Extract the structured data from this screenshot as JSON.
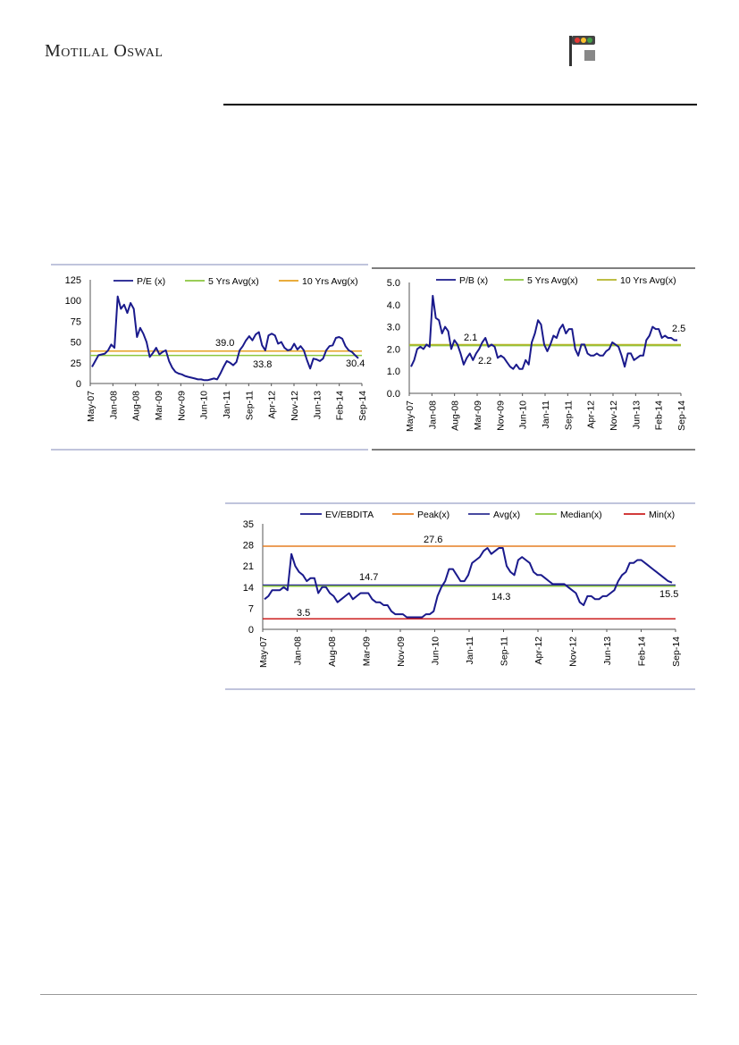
{
  "header": {
    "brand_name": "Motilal Oswal"
  },
  "colors": {
    "series": "#1a1a8c",
    "green": "#8cc63f",
    "orange": "#e6a020",
    "olive": "#b5b52a",
    "dark_orange": "#e67e22",
    "navy_line": "#2e3192",
    "red": "#cc1f1f",
    "frame_line": "#9aa0c8"
  },
  "chart_data": [
    {
      "id": "pe",
      "type": "line",
      "ylim": [
        0,
        125
      ],
      "yticks": [
        "0",
        "25",
        "50",
        "75",
        "100",
        "125"
      ],
      "xticks": [
        "May-07",
        "Jan-08",
        "Aug-08",
        "Mar-09",
        "Nov-09",
        "Jun-10",
        "Jan-11",
        "Sep-11",
        "Apr-12",
        "Nov-12",
        "Jun-13",
        "Feb-14",
        "Sep-14"
      ],
      "legend": [
        "P/E (x)",
        "5 Yrs Avg(x)",
        "10 Yrs Avg(x)"
      ],
      "series": [
        {
          "name": "P/E (x)",
          "values": [
            20,
            27,
            34,
            35,
            36,
            40,
            47,
            43,
            105,
            90,
            95,
            85,
            97,
            90,
            56,
            67,
            60,
            50,
            32,
            37,
            43,
            35,
            38,
            40,
            27,
            19,
            14,
            12,
            11,
            9,
            8,
            7,
            6,
            5,
            5,
            4,
            4,
            5,
            6,
            5,
            12,
            20,
            27,
            25,
            22,
            26,
            40,
            45,
            52,
            57,
            52,
            59,
            62,
            46,
            40,
            58,
            60,
            58,
            48,
            50,
            43,
            40,
            41,
            48,
            41,
            45,
            40,
            28,
            18,
            30,
            29,
            27,
            30,
            40,
            45,
            46,
            55,
            56,
            54,
            45,
            40,
            38,
            34,
            30.4
          ]
        }
      ],
      "hlines": [
        {
          "name": "5 Yrs Avg(x)",
          "value": 33.8,
          "label": "33.8",
          "color": "#8cc63f"
        },
        {
          "name": "10 Yrs Avg(x)",
          "value": 39.0,
          "label": "39.0",
          "color": "#e6a020"
        }
      ],
      "annotations": [
        "39.0",
        "33.8",
        "30.4"
      ]
    },
    {
      "id": "pb",
      "type": "line",
      "ylim": [
        0,
        5
      ],
      "yticks": [
        "0.0",
        "1.0",
        "2.0",
        "3.0",
        "4.0",
        "5.0"
      ],
      "xticks": [
        "May-07",
        "Jan-08",
        "Aug-08",
        "Mar-09",
        "Nov-09",
        "Jun-10",
        "Jan-11",
        "Sep-11",
        "Apr-12",
        "Nov-12",
        "Jun-13",
        "Feb-14",
        "Sep-14"
      ],
      "legend": [
        "P/B (x)",
        "5 Yrs Avg(x)",
        "10 Yrs Avg(x)"
      ],
      "series": [
        {
          "name": "P/B (x)",
          "values": [
            1.2,
            1.5,
            2.0,
            2.1,
            2.0,
            2.2,
            2.1,
            4.4,
            3.4,
            3.3,
            2.7,
            3.0,
            2.8,
            2.0,
            2.4,
            2.2,
            1.8,
            1.3,
            1.6,
            1.8,
            1.5,
            1.8,
            2.0,
            2.3,
            2.5,
            2.1,
            2.2,
            2.1,
            1.6,
            1.7,
            1.6,
            1.4,
            1.2,
            1.1,
            1.3,
            1.1,
            1.1,
            1.5,
            1.3,
            2.3,
            2.7,
            3.3,
            3.1,
            2.2,
            1.9,
            2.2,
            2.6,
            2.5,
            2.9,
            3.1,
            2.7,
            2.9,
            2.9,
            2.0,
            1.7,
            2.2,
            2.2,
            1.8,
            1.7,
            1.7,
            1.8,
            1.7,
            1.7,
            1.9,
            2.0,
            2.3,
            2.2,
            2.1,
            1.7,
            1.2,
            1.8,
            1.8,
            1.5,
            1.6,
            1.7,
            1.7,
            2.4,
            2.6,
            3.0,
            2.9,
            2.9,
            2.5,
            2.6,
            2.5,
            2.5,
            2.4,
            2.4
          ]
        }
      ],
      "hlines": [
        {
          "name": "5 Yrs Avg(x)",
          "value": 2.15,
          "label": "2.1",
          "color": "#8cc63f"
        },
        {
          "name": "10 Yrs Avg(x)",
          "value": 2.2,
          "label": "2.2",
          "color": "#b5b52a"
        }
      ],
      "annotations": [
        "2.1",
        "2.2",
        "2.5"
      ]
    },
    {
      "id": "ev",
      "type": "line",
      "ylim": [
        0,
        35
      ],
      "yticks": [
        "0",
        "7",
        "14",
        "21",
        "28",
        "35"
      ],
      "xticks": [
        "May-07",
        "Jan-08",
        "Aug-08",
        "Mar-09",
        "Nov-09",
        "Jun-10",
        "Jan-11",
        "Sep-11",
        "Apr-12",
        "Nov-12",
        "Jun-13",
        "Feb-14",
        "Sep-14"
      ],
      "legend": [
        "EV/EBDITA",
        "Peak(x)",
        "Avg(x)",
        "Median(x)",
        "Min(x)"
      ],
      "series": [
        {
          "name": "EV/EBDITA",
          "values": [
            10,
            11,
            13,
            13,
            13,
            14,
            13,
            25,
            21,
            19,
            18,
            16,
            17,
            17,
            12,
            14,
            14,
            12,
            11,
            9,
            10,
            11,
            12,
            10,
            11,
            12,
            12,
            12,
            10,
            9,
            9,
            8,
            8,
            6,
            5,
            5,
            5,
            4,
            4,
            4,
            4,
            4,
            5,
            5,
            6,
            11,
            14,
            16,
            20,
            20,
            18,
            16,
            16,
            18,
            22,
            23,
            24,
            26,
            27,
            25,
            26,
            27,
            27,
            21,
            19,
            18,
            23,
            24,
            23,
            22,
            19,
            18,
            18,
            17,
            16,
            15,
            15,
            15,
            15,
            14,
            13,
            12,
            9,
            8,
            11,
            11,
            10,
            10,
            11,
            11,
            12,
            13,
            16,
            18,
            19,
            22,
            22,
            23,
            23,
            22,
            21,
            20,
            19,
            18,
            17,
            16,
            15.5
          ]
        }
      ],
      "hlines": [
        {
          "name": "Peak(x)",
          "value": 27.6,
          "label": "27.6",
          "color": "#e67e22"
        },
        {
          "name": "Avg(x)",
          "value": 14.7,
          "label": "14.7",
          "color": "#2e3192"
        },
        {
          "name": "Median(x)",
          "value": 14.3,
          "label": "14.3",
          "color": "#8cc63f"
        },
        {
          "name": "Min(x)",
          "value": 3.5,
          "label": "3.5",
          "color": "#cc1f1f"
        }
      ],
      "annotations": [
        "27.6",
        "14.7",
        "14.3",
        "3.5",
        "15.5"
      ]
    }
  ]
}
